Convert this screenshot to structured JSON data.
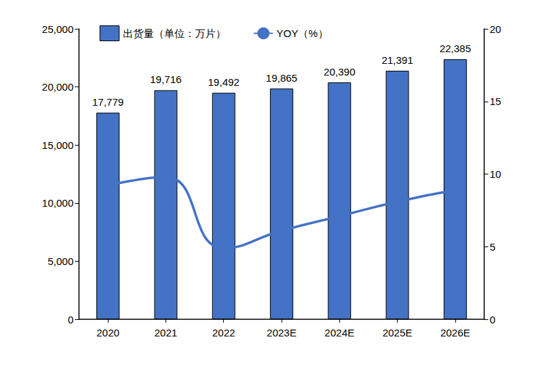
{
  "chart_data": {
    "type": "bar",
    "categories": [
      "2020",
      "2021",
      "2022",
      "2023E",
      "2024E",
      "2025E",
      "2026E"
    ],
    "series": [
      {
        "name": "出货量（单位：万片）",
        "type": "bar",
        "color": "#4472c4",
        "values": [
          17779,
          19716,
          19492,
          19865,
          20390,
          21391,
          22385
        ],
        "value_labels": [
          "17,779",
          "19,716",
          "19,492",
          "19,865",
          "20,390",
          "21,391",
          "22,385"
        ]
      },
      {
        "name": "YOY（%）",
        "type": "line",
        "axis": "y2",
        "color": "#4472c4",
        "line_style": "smooth",
        "marker": "none",
        "values": [
          9.2,
          9.8,
          4.9,
          6.1,
          7.1,
          8.1,
          8.9
        ]
      }
    ],
    "ylim": [
      0,
      25000
    ],
    "yticks": [
      0,
      {
        "value": 5000,
        "label": "5,000"
      },
      {
        "value": 10000,
        "label": "10,000"
      },
      {
        "value": 15000,
        "label": "15,000"
      },
      {
        "value": 20000,
        "label": "20,000"
      },
      {
        "value": 25000,
        "label": "25,000"
      }
    ],
    "y2lim": [
      0,
      20
    ],
    "y2ticks": [
      0,
      5,
      10,
      15,
      20
    ],
    "grid": false,
    "legend": "top",
    "data_labels": true
  }
}
